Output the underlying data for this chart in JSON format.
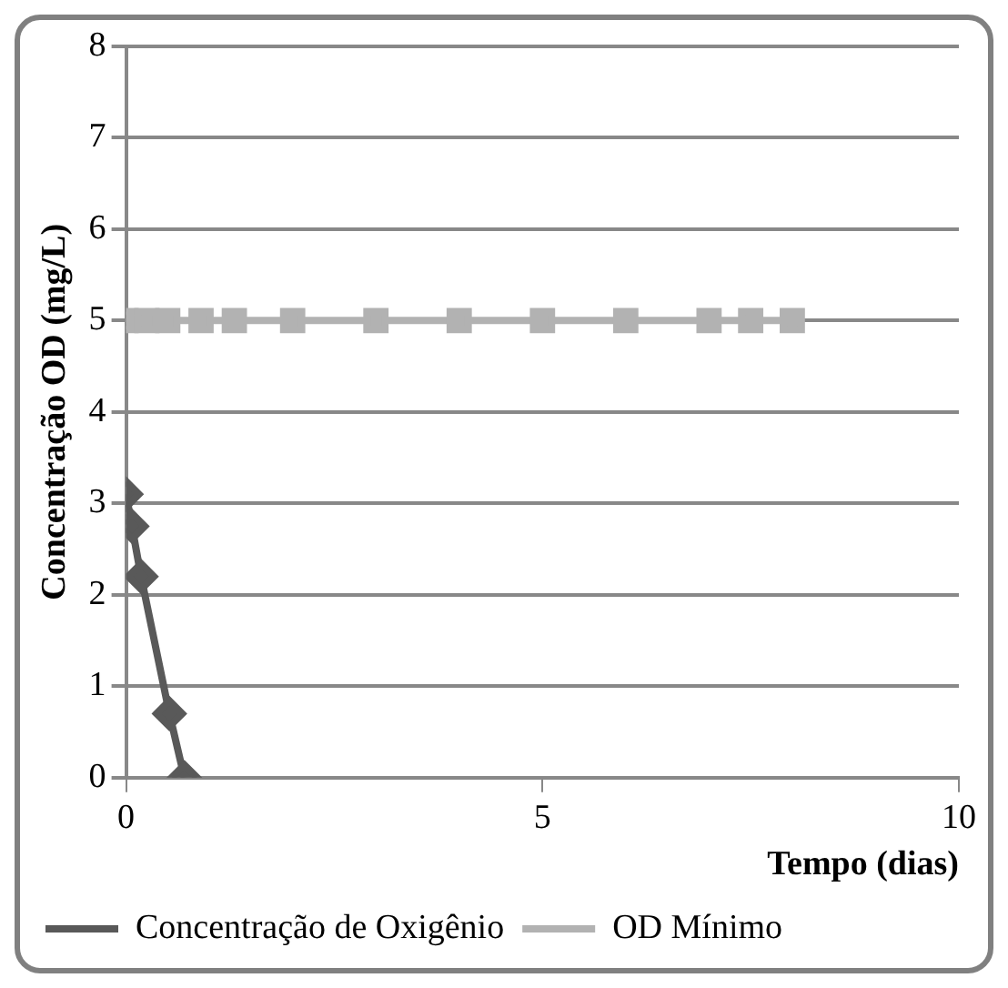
{
  "chart_data": {
    "type": "line",
    "xlabel": "Tempo (dias)",
    "ylabel": "Concentração OD (mg/L)",
    "xlim": [
      0,
      10
    ],
    "xticks": [
      0,
      5,
      10
    ],
    "ylim": [
      0,
      8
    ],
    "yticks": [
      0,
      1,
      2,
      3,
      4,
      5,
      6,
      7,
      8
    ],
    "grid": "y",
    "legend": "bottom",
    "series": [
      {
        "name": "Concentração de Oxigênio",
        "color": "#595959",
        "marker": "diamond",
        "x": [
          0,
          0.07,
          0.18,
          0.52,
          0.7
        ],
        "values": [
          3.1,
          2.75,
          2.2,
          0.7,
          0
        ]
      },
      {
        "name": "OD Mínimo",
        "color": "#b2b2b2",
        "marker": "square",
        "x": [
          0,
          0.25,
          0.5,
          0.9,
          1.3,
          2,
          3,
          4,
          5,
          6,
          7,
          7.5,
          8
        ],
        "values": [
          5,
          5,
          5,
          5,
          5,
          5,
          5,
          5,
          5,
          5,
          5,
          5,
          5
        ]
      }
    ]
  }
}
